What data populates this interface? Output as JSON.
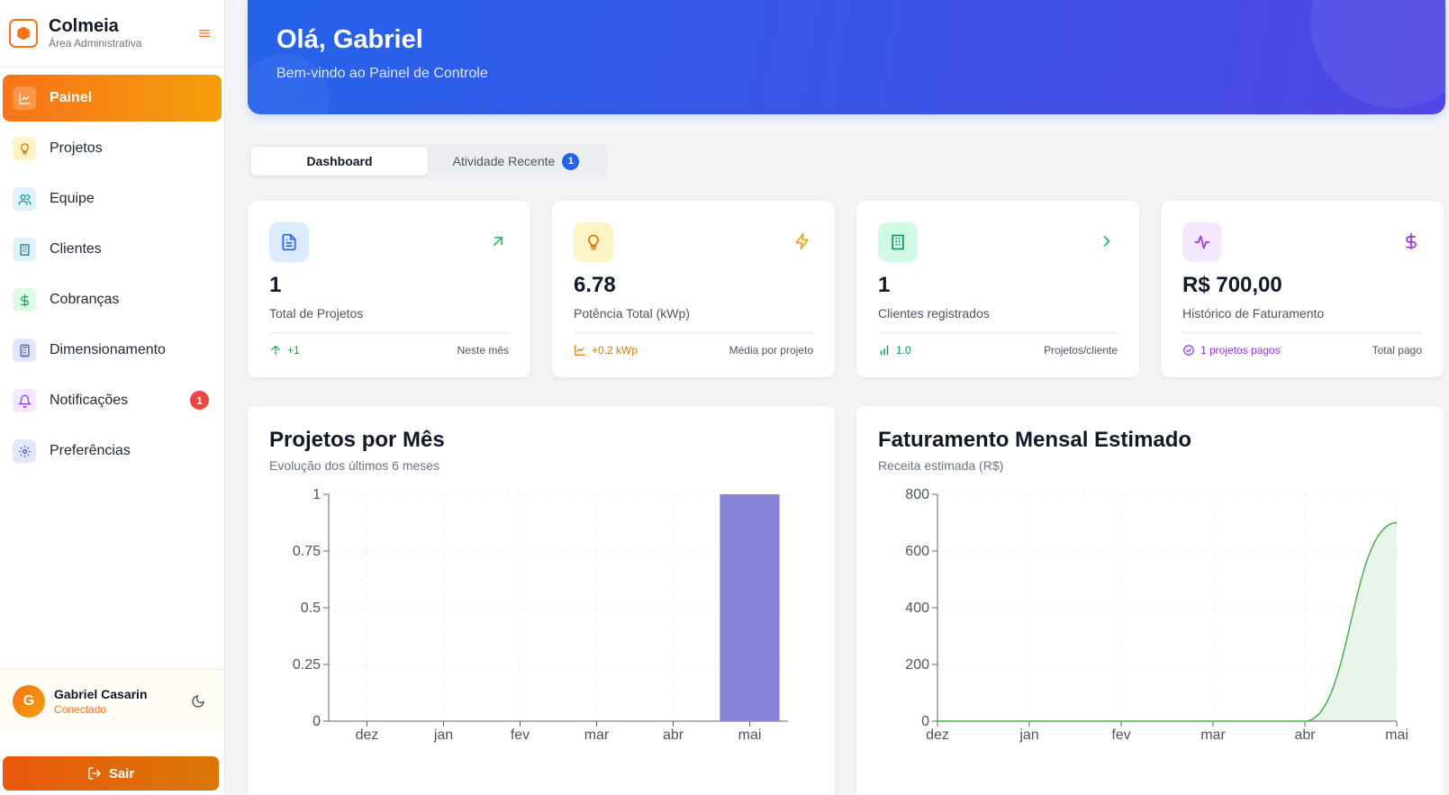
{
  "sidebar": {
    "brand_name": "Colmeia",
    "brand_sub": "Área Administrativa",
    "items": [
      {
        "label": "Painel",
        "icon": "chart-line-icon",
        "active": true
      },
      {
        "label": "Projetos",
        "icon": "lightbulb-icon"
      },
      {
        "label": "Equipe",
        "icon": "users-icon"
      },
      {
        "label": "Clientes",
        "icon": "building-icon"
      },
      {
        "label": "Cobranças",
        "icon": "dollar-icon"
      },
      {
        "label": "Dimensionamento",
        "icon": "calculator-icon"
      },
      {
        "label": "Notificações",
        "icon": "bell-icon",
        "badge": "1"
      },
      {
        "label": "Preferências",
        "icon": "gear-icon"
      }
    ],
    "user": {
      "initial": "G",
      "name": "Gabriel Casarin",
      "status": "Conectado"
    },
    "logout_label": "Sair"
  },
  "hero": {
    "title": "Olá, Gabriel",
    "subtitle": "Bem-vindo ao Painel de Controle"
  },
  "tabs": [
    {
      "label": "Dashboard",
      "active": true
    },
    {
      "label": "Atividade Recente",
      "badge": "1"
    }
  ],
  "cards": [
    {
      "value": "1",
      "label": "Total de Projetos",
      "foot_left": "+1",
      "foot_right": "Neste mês",
      "icon": "document-icon",
      "corner_icon": "arrow-up-right-icon",
      "accent": "#22c55e"
    },
    {
      "value": "6.78",
      "label": "Potência Total (kWp)",
      "foot_left": "+0.2 kWp",
      "foot_right": "Média por projeto",
      "icon": "lightbulb-icon",
      "corner_icon": "lightning-icon",
      "accent": "#f59e0b"
    },
    {
      "value": "1",
      "label": "Clientes registrados",
      "foot_left": "1.0",
      "foot_right": "Projetos/cliente",
      "icon": "building-icon",
      "corner_icon": "chevron-right-icon",
      "accent": "#10b981"
    },
    {
      "value": "R$ 700,00",
      "label": "Histórico de Faturamento",
      "foot_left": "1 projetos pagos",
      "foot_right": "Total pago",
      "icon": "activity-icon",
      "corner_icon": "dollar-icon",
      "accent": "#9333ea"
    }
  ],
  "chart_data": [
    {
      "type": "bar",
      "title": "Projetos por Mês",
      "subtitle": "Evolução dos últimos 6 meses",
      "categories": [
        "dez",
        "jan",
        "fev",
        "mar",
        "abr",
        "mai"
      ],
      "values": [
        0,
        0,
        0,
        0,
        0,
        1
      ],
      "yticks": [
        "0",
        "0.25",
        "0.5",
        "0.75",
        "1"
      ],
      "ylim": [
        0,
        1
      ],
      "color": "#8884d8",
      "grid": true
    },
    {
      "type": "area",
      "title": "Faturamento Mensal Estimado",
      "subtitle": "Receita estimada (R$)",
      "categories": [
        "dez",
        "jan",
        "fev",
        "mar",
        "abr",
        "mai"
      ],
      "values": [
        0,
        0,
        0,
        0,
        0,
        700
      ],
      "yticks": [
        "0",
        "200",
        "400",
        "600",
        "800"
      ],
      "ylim": [
        0,
        800
      ],
      "color": "#4caf50",
      "grid": true
    }
  ]
}
